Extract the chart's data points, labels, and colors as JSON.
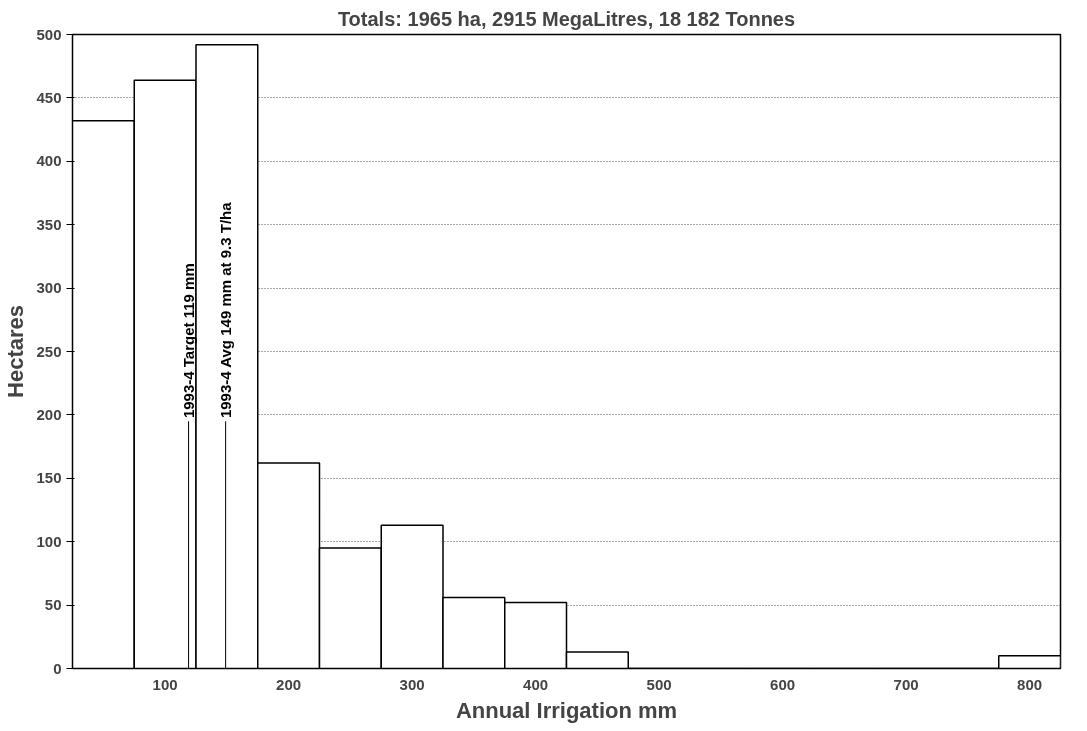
{
  "chart_data": {
    "type": "histogram",
    "title": "Totals: 1965 ha, 2915 MegaLitres, 18 182 Tonnes",
    "xlabel": "Annual Irrigation mm",
    "ylabel": "Hectares",
    "bins": [
      25,
      75,
      125,
      175,
      225,
      275,
      325,
      375,
      425,
      475,
      525,
      575,
      625,
      675,
      725,
      775,
      825
    ],
    "values": [
      432,
      464,
      492,
      162,
      95,
      113,
      56,
      52,
      13,
      0,
      0,
      0,
      0,
      0,
      0,
      10
    ],
    "color": "#ffffff",
    "xlim": [
      25,
      825
    ],
    "xticks": [
      100,
      200,
      300,
      400,
      500,
      600,
      700,
      800
    ],
    "ylim": [
      0,
      500
    ],
    "yticks": [
      0,
      50,
      100,
      150,
      200,
      250,
      300,
      350,
      400,
      450,
      500
    ],
    "grid": "y",
    "ref_lines": [
      {
        "axis": "x",
        "value": 119,
        "label": "1993-4 Target 119 mm"
      },
      {
        "axis": "x",
        "value": 149,
        "label": "1993-4 Avg 149 mm at 9.3 T/ha"
      }
    ]
  }
}
